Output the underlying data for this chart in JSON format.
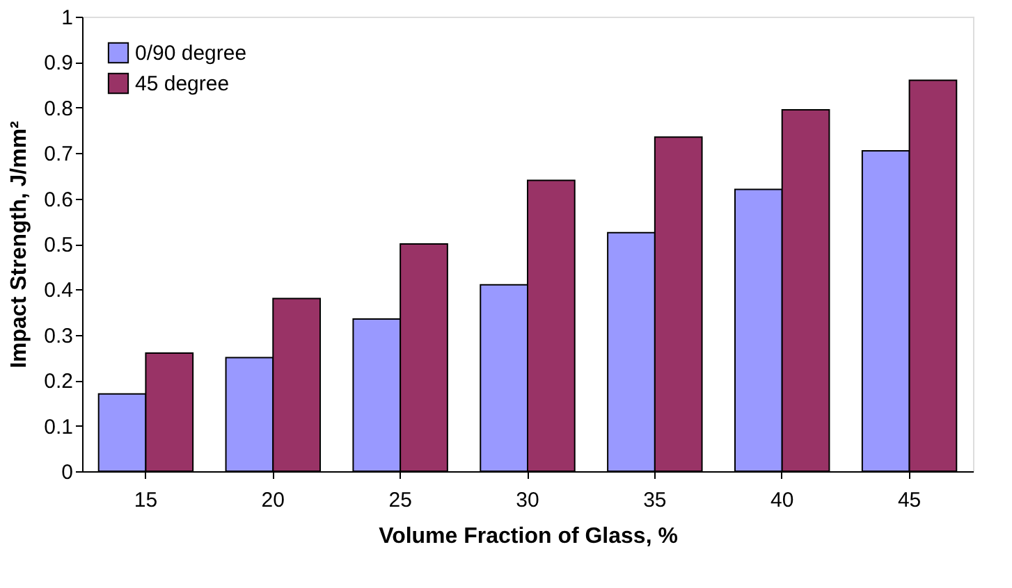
{
  "chart_data": {
    "type": "bar",
    "xlabel": "Volume Fraction of Glass, %",
    "ylabel": "Impact Strength, J/mm²",
    "categories": [
      "15",
      "20",
      "25",
      "30",
      "35",
      "40",
      "45"
    ],
    "series": [
      {
        "name": "0/90 degree",
        "color": "#9999ff",
        "values": [
          0.17,
          0.25,
          0.335,
          0.41,
          0.525,
          0.62,
          0.705
        ]
      },
      {
        "name": "45 degree",
        "color": "#993366",
        "values": [
          0.26,
          0.38,
          0.5,
          0.64,
          0.735,
          0.795,
          0.86
        ]
      }
    ],
    "ylim": [
      0,
      1
    ],
    "yticks": [
      0,
      0.1,
      0.2,
      0.3,
      0.4,
      0.5,
      0.6,
      0.7,
      0.8,
      0.9,
      1
    ],
    "grid": false,
    "legend": "top left"
  }
}
